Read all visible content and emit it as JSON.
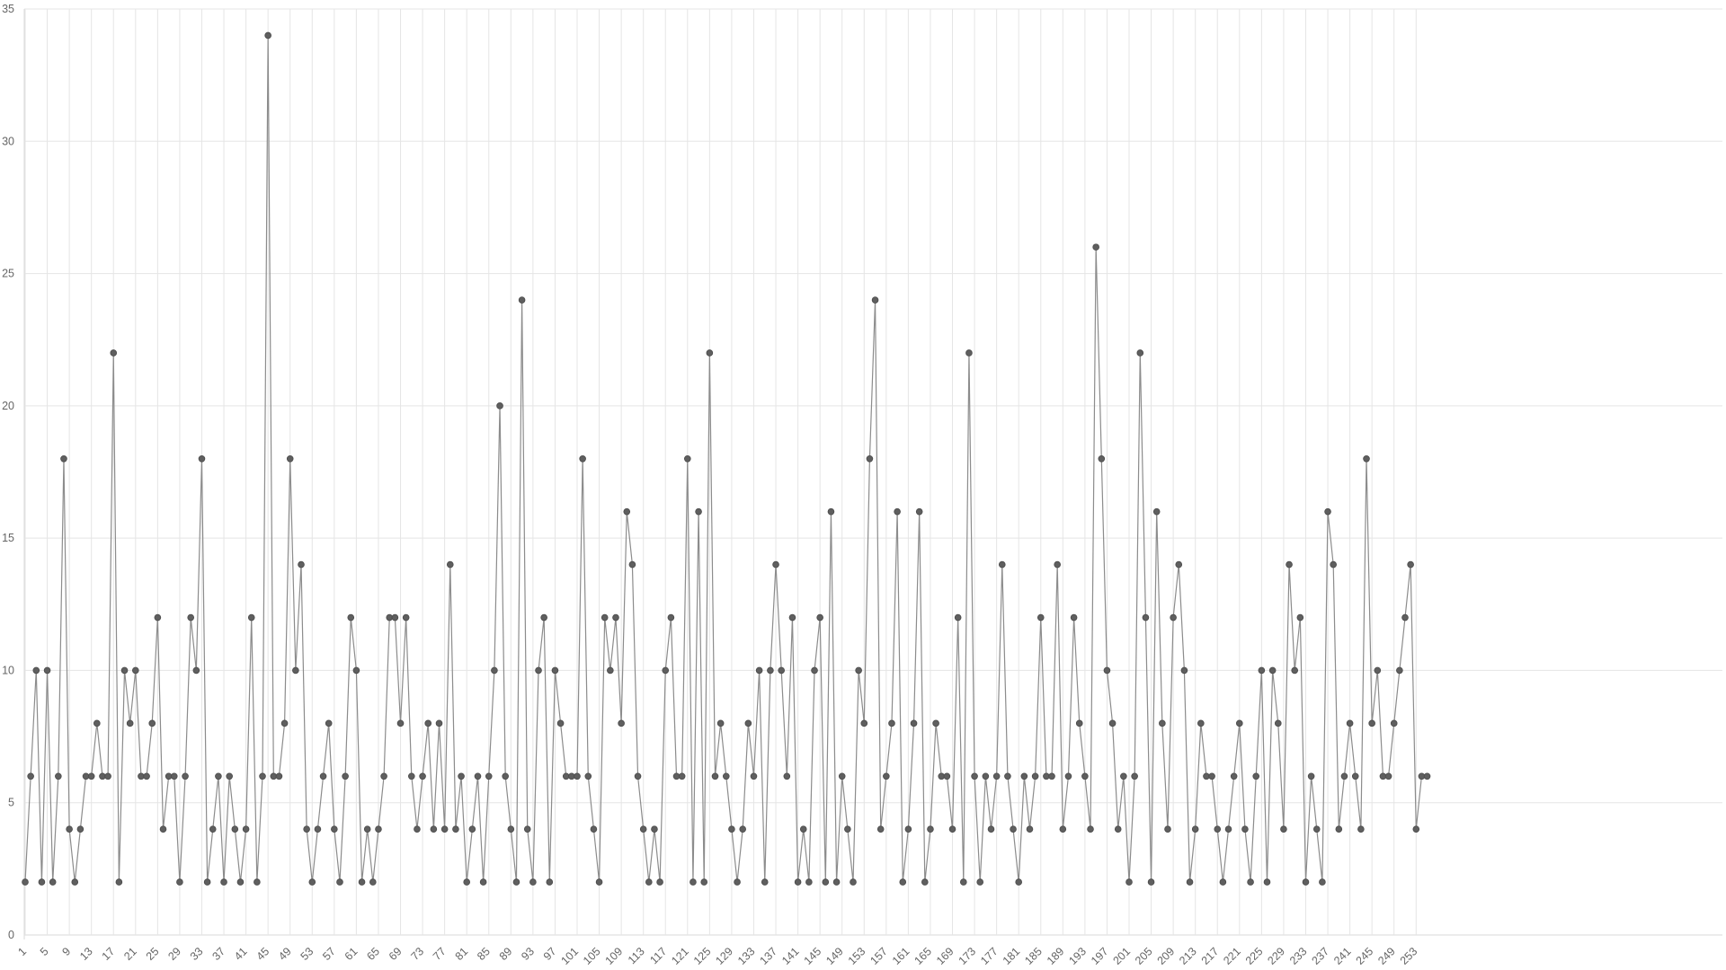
{
  "chart_data": {
    "type": "line",
    "title": "",
    "xlabel": "",
    "ylabel": "",
    "ylim": [
      0,
      35
    ],
    "y_ticks": [
      0,
      5,
      10,
      15,
      20,
      25,
      30,
      35
    ],
    "x_range": [
      1,
      255
    ],
    "x_tick_step": 4,
    "grid": true,
    "legend": "none",
    "colors": {
      "line": "#8c8c8c",
      "point": "#5f5f5f",
      "grid": "#e5e5e5",
      "text": "#666666"
    },
    "series": [
      {
        "values": [
          2,
          6,
          10,
          2,
          10,
          2,
          6,
          18,
          4,
          2,
          4,
          6,
          6,
          8,
          6,
          6,
          22,
          2,
          10,
          8,
          10,
          6,
          6,
          8,
          12,
          4,
          6,
          6,
          2,
          6,
          12,
          10,
          18,
          2,
          4,
          6,
          2,
          6,
          4,
          2,
          4,
          12,
          2,
          6,
          34,
          6,
          6,
          8,
          18,
          10,
          14,
          4,
          2,
          4,
          6,
          8,
          4,
          2,
          6,
          12,
          10,
          2,
          4,
          2,
          4,
          6,
          12,
          12,
          8,
          12,
          6,
          4,
          6,
          8,
          4,
          8,
          4,
          14,
          4,
          6,
          2,
          4,
          6,
          2,
          6,
          10,
          20,
          6,
          4,
          2,
          24,
          4,
          2,
          10,
          12,
          2,
          10,
          8,
          6,
          6,
          6,
          18,
          6,
          4,
          2,
          12,
          10,
          12,
          8,
          16,
          14,
          6,
          4,
          2,
          4,
          2,
          10,
          12,
          6,
          6,
          18,
          2,
          16,
          2,
          22,
          6,
          8,
          6,
          4,
          2,
          4,
          8,
          6,
          10,
          2,
          10,
          14,
          10,
          6,
          12,
          2,
          4,
          2,
          10,
          12,
          2,
          16,
          2,
          6,
          4,
          2,
          10,
          8,
          18,
          24,
          4,
          6,
          8,
          16,
          2,
          4,
          8,
          16,
          2,
          4,
          8,
          6,
          6,
          4,
          12,
          2,
          22,
          6,
          2,
          6,
          4,
          6,
          14,
          6,
          4,
          2,
          6,
          4,
          6,
          12,
          6,
          6,
          14,
          4,
          6,
          12,
          8,
          6,
          4,
          26,
          18,
          10,
          8,
          4,
          6,
          2,
          6,
          22,
          12,
          2,
          16,
          8,
          4,
          12,
          14,
          10,
          2,
          4,
          8,
          6,
          6,
          4,
          2,
          4,
          6,
          8,
          4,
          2,
          6,
          10,
          2,
          10,
          8,
          4,
          14,
          10,
          12,
          2,
          6,
          4,
          2,
          16,
          14,
          4,
          6,
          8,
          6,
          4,
          18,
          8,
          10,
          6,
          6,
          8,
          10,
          12,
          14,
          4,
          6,
          6
        ]
      }
    ]
  }
}
